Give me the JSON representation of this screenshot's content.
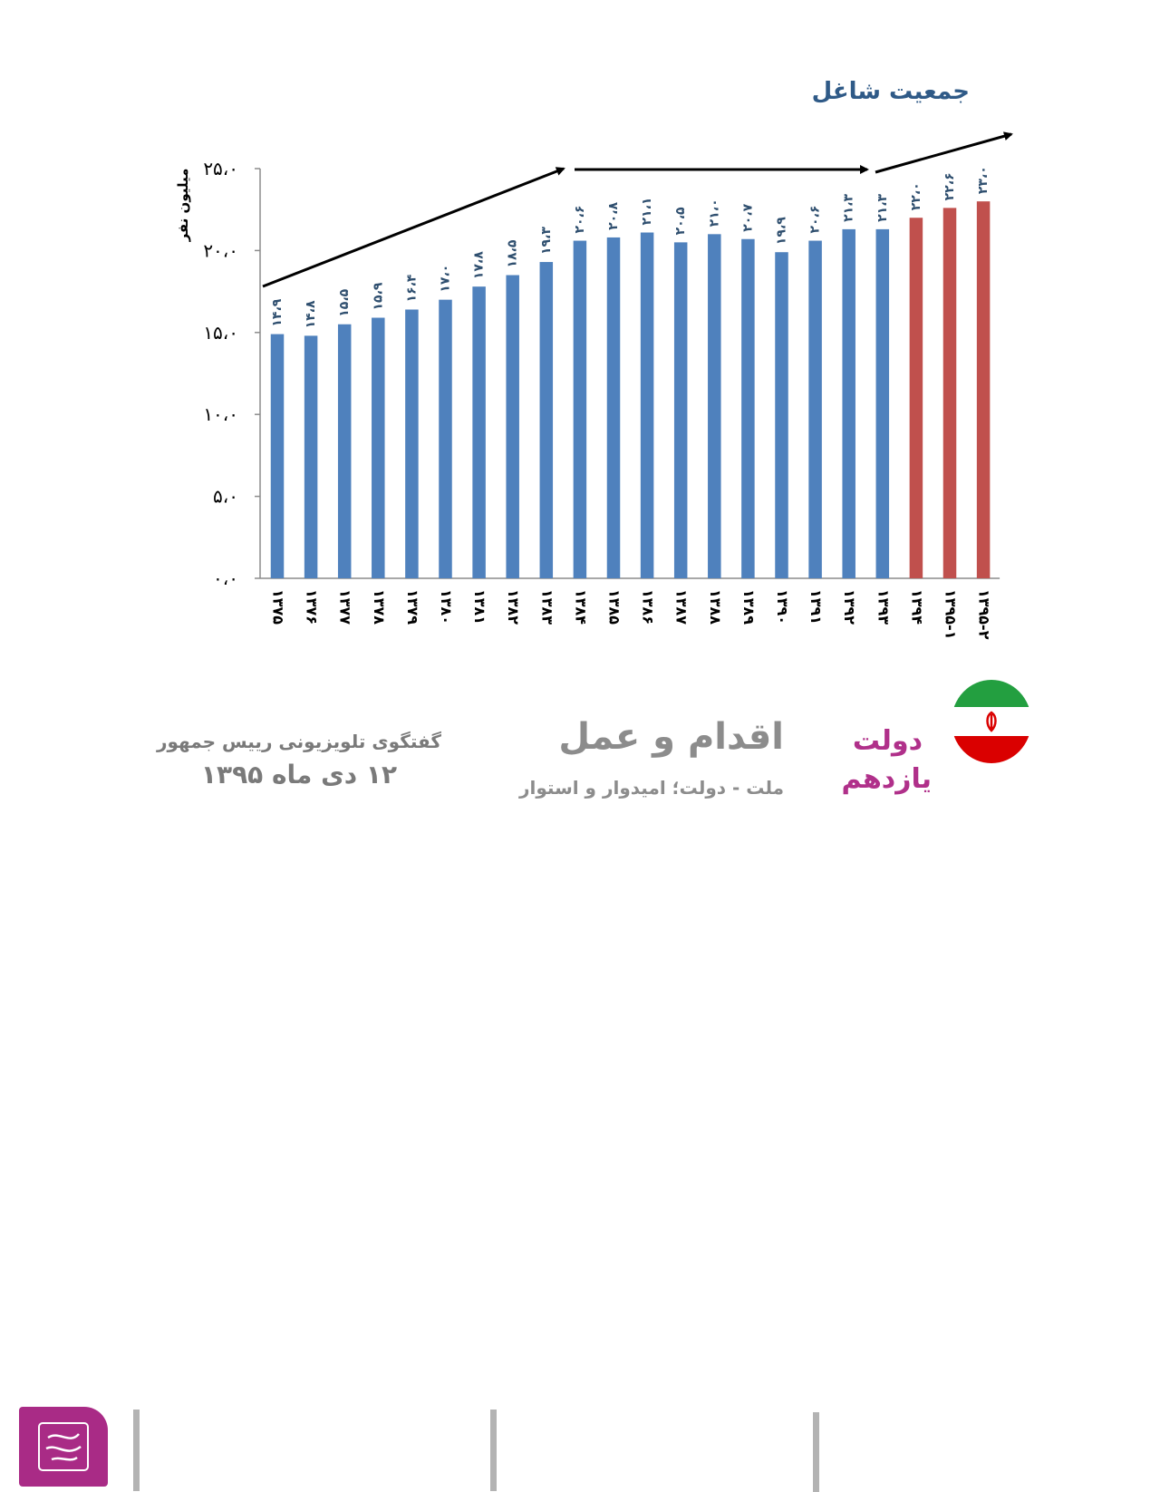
{
  "header": {
    "title": "جمعیت شاغل"
  },
  "chart_data": {
    "type": "bar",
    "title": "جمعیت شاغل",
    "ylabel": "میلیون نفر",
    "xlabel": "",
    "ylim": [
      0,
      25
    ],
    "yticks": [
      "۰،۰",
      "۵،۰",
      "۱۰،۰",
      "۱۵،۰",
      "۲۰،۰",
      "۲۵،۰"
    ],
    "ytick_values": [
      0,
      5,
      10,
      15,
      20,
      25
    ],
    "categories": [
      "۱۳۷۵",
      "۱۳۷۶",
      "۱۳۷۷",
      "۱۳۷۸",
      "۱۳۷۹",
      "۱۳۸۰",
      "۱۳۸۱",
      "۱۳۸۲",
      "۱۳۸۳",
      "۱۳۸۴",
      "۱۳۸۵",
      "۱۳۸۶",
      "۱۳۸۷",
      "۱۳۸۸",
      "۱۳۸۹",
      "۱۳۹۰",
      "۱۳۹۱",
      "۱۳۹۲",
      "۱۳۹۳",
      "۱۳۹۴",
      "۱۳۹۵-۱",
      "۱۳۹۵-۲"
    ],
    "values": [
      14.9,
      14.8,
      15.5,
      15.9,
      16.4,
      17.0,
      17.8,
      18.5,
      19.3,
      20.6,
      20.8,
      21.1,
      20.5,
      21.0,
      20.7,
      19.9,
      20.6,
      21.3,
      21.3,
      22.0,
      22.6,
      23.0
    ],
    "value_labels": [
      "۱۴،۹",
      "۱۴،۸",
      "۱۵،۵",
      "۱۵،۹",
      "۱۶،۴",
      "۱۷،۰",
      "۱۷،۸",
      "۱۸،۵",
      "۱۹،۳",
      "۲۰،۶",
      "۲۰،۸",
      "۲۱،۱",
      "۲۰،۵",
      "۲۱،۰",
      "۲۰،۷",
      "۱۹،۹",
      "۲۰،۶",
      "۲۱،۳",
      "۲۱،۳",
      "۲۲،۰",
      "۲۲،۶",
      "۲۳،۰"
    ],
    "highlight_from_index": 19,
    "colors": {
      "base": "#4f81bd",
      "highlight": "#c0504d",
      "label": "#2f4f6f"
    },
    "legend": "none",
    "grid": false
  },
  "footer": {
    "speech_line1": "گفتگوی تلویزیونی رییس جمهور",
    "speech_line2": "۱۲ دی ماه ۱۳۹۵",
    "slogan_main": "اقدام و عمل",
    "slogan_sub": "ملت - دولت؛ امیدوار و استوار",
    "gov_line1": "دولت",
    "gov_line2": "یازدهم",
    "logo_color": "#a92b86",
    "flag_colors": [
      "#239f40",
      "#ffffff",
      "#da0000"
    ]
  }
}
